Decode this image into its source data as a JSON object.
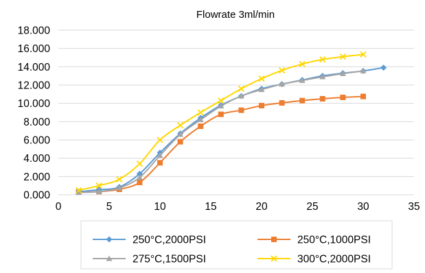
{
  "chart_data": {
    "type": "line",
    "title": "Flowrate 3ml/min",
    "xlabel": "",
    "ylabel": "",
    "xlim": [
      0,
      35
    ],
    "ylim": [
      0,
      18
    ],
    "xticks": [
      0,
      5,
      10,
      15,
      20,
      25,
      30,
      35
    ],
    "yticks": [
      0,
      2,
      4,
      6,
      8,
      10,
      12,
      14,
      16,
      18
    ],
    "xtick_labels": [
      "0",
      "5",
      "10",
      "15",
      "20",
      "25",
      "30",
      "35"
    ],
    "ytick_labels": [
      "0.000",
      "2.000",
      "4.000",
      "6.000",
      "8.000",
      "10.000",
      "12.000",
      "14.000",
      "16.000",
      "18.000"
    ],
    "grid": "horizontal",
    "legend_position": "bottom",
    "series": [
      {
        "name": "250°C,2000PSI",
        "color": "#5b9bd5",
        "marker": "diamond",
        "x": [
          2,
          4,
          6,
          8,
          10,
          12,
          14,
          16,
          18,
          20,
          22,
          24,
          26,
          28,
          30,
          32
        ],
        "y": [
          0.35,
          0.55,
          0.85,
          2.3,
          4.6,
          6.7,
          8.4,
          9.8,
          10.8,
          11.6,
          12.1,
          12.55,
          13.0,
          13.3,
          13.55,
          13.9
        ]
      },
      {
        "name": "250°C,1000PSI",
        "color": "#ed7d31",
        "marker": "square",
        "x": [
          2,
          4,
          6,
          8,
          10,
          12,
          14,
          16,
          18,
          20,
          22,
          24,
          26,
          28,
          30
        ],
        "y": [
          0.3,
          0.35,
          0.6,
          1.35,
          3.5,
          5.8,
          7.5,
          8.8,
          9.25,
          9.75,
          10.05,
          10.3,
          10.5,
          10.65,
          10.75
        ]
      },
      {
        "name": "275°C,1500PSI",
        "color": "#a5a5a5",
        "marker": "triangle",
        "x": [
          2,
          4,
          6,
          8,
          10,
          12,
          14,
          16,
          18,
          20,
          22,
          24,
          26,
          28,
          30
        ],
        "y": [
          0.25,
          0.35,
          0.75,
          1.9,
          4.3,
          6.6,
          8.2,
          9.7,
          10.8,
          11.5,
          12.1,
          12.5,
          12.9,
          13.25,
          13.55
        ]
      },
      {
        "name": "300°C,2000PSI",
        "color": "#ffd700",
        "marker": "x",
        "x": [
          2,
          4,
          6,
          8,
          10,
          12,
          14,
          16,
          18,
          20,
          22,
          24,
          26,
          28,
          30
        ],
        "y": [
          0.5,
          1.0,
          1.7,
          3.4,
          6.0,
          7.6,
          9.0,
          10.3,
          11.6,
          12.7,
          13.6,
          14.3,
          14.8,
          15.1,
          15.35
        ]
      }
    ]
  }
}
